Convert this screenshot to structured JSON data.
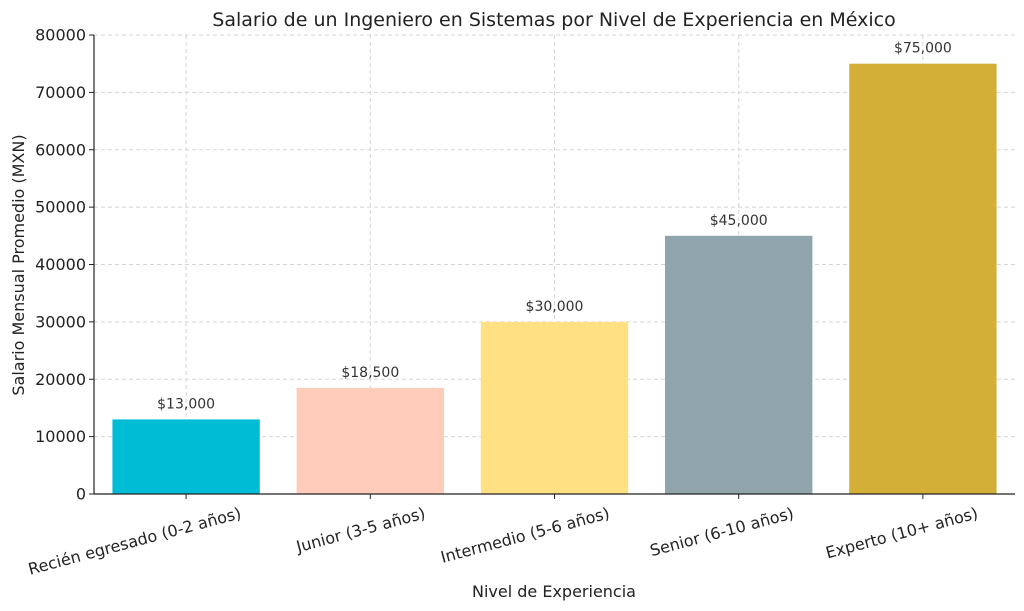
{
  "chart_data": {
    "type": "bar",
    "title": "Salario de un Ingeniero en Sistemas por Nivel de Experiencia en México",
    "xlabel": "Nivel de Experiencia",
    "ylabel": "Salario Mensual Promedio (MXN)",
    "ylim": [
      0,
      80000
    ],
    "yticks": [
      0,
      10000,
      20000,
      30000,
      40000,
      50000,
      60000,
      70000,
      80000
    ],
    "grid": true,
    "categories": [
      "Recién egresado (0-2 años)",
      "Junior (3-5 años)",
      "Intermedio (5-6 años)",
      "Senior (6-10 años)",
      "Experto (10+ años)"
    ],
    "values": [
      13000,
      18500,
      30000,
      45000,
      75000
    ],
    "data_labels": [
      "$13,000",
      "$18,500",
      "$30,000",
      "$45,000",
      "$75,000"
    ],
    "colors": [
      "#00bcd4",
      "#ffccbc",
      "#ffe082",
      "#90a4ae",
      "#d4af37"
    ]
  }
}
